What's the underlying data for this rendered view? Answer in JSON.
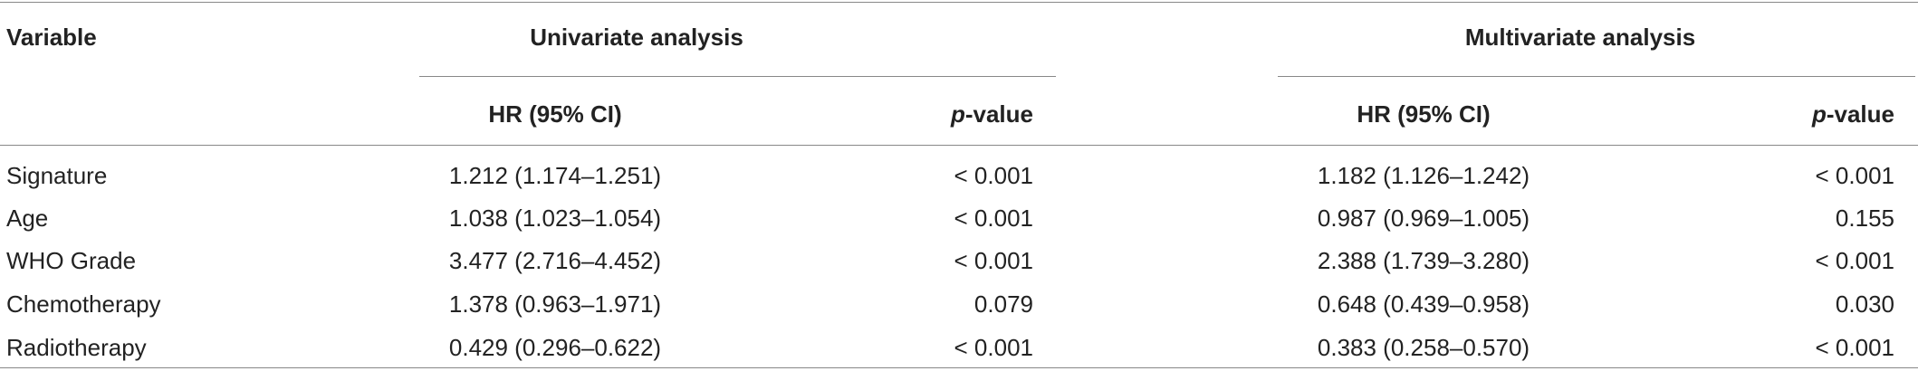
{
  "table": {
    "header": {
      "variable": "Variable",
      "groups": [
        "Univariate analysis",
        "Multivariate analysis"
      ]
    },
    "subheader": [
      {
        "label": "HR (95% CI)"
      },
      {
        "italic": "p",
        "rest": "-value"
      },
      {
        "label": "HR (95% CI)"
      },
      {
        "italic": "p",
        "rest": "-value"
      }
    ],
    "rows": [
      [
        "Signature",
        "1.212 (1.174–1.251)",
        "< 0.001",
        "1.182 (1.126–1.242)",
        "< 0.001"
      ],
      [
        "Age",
        "1.038 (1.023–1.054)",
        "< 0.001",
        "0.987 (0.969–1.005)",
        "0.155"
      ],
      [
        "WHO Grade",
        "3.477 (2.716–4.452)",
        "< 0.001",
        "2.388 (1.739–3.280)",
        "< 0.001"
      ],
      [
        "Chemotherapy",
        "1.378 (0.963–1.971)",
        "0.079",
        "0.648 (0.439–0.958)",
        "0.030"
      ],
      [
        "Radiotherapy",
        "0.429 (0.296–0.622)",
        "< 0.001",
        "0.383 (0.258–0.570)",
        "< 0.001"
      ]
    ]
  }
}
